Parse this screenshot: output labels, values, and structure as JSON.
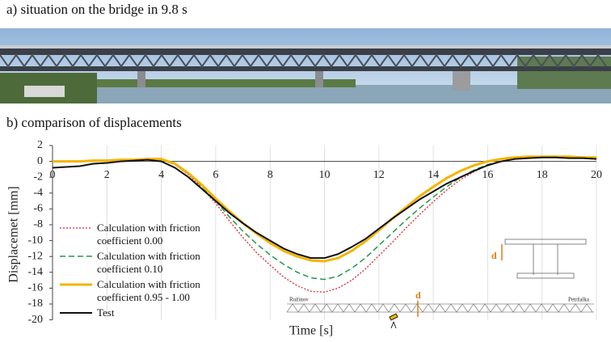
{
  "panel_a_title": "a) situation on the bridge in 9.8 s",
  "panel_b_title": "b) comparison of displacements",
  "chart_data": {
    "type": "line",
    "x_label": "Time [s]",
    "y_label": "Displacemet [mm]",
    "x": [
      0,
      0.5,
      1,
      1.5,
      2,
      2.5,
      3,
      3.5,
      4,
      4.5,
      5,
      5.5,
      6,
      6.5,
      7,
      7.5,
      8,
      8.5,
      9,
      9.5,
      10,
      10.5,
      11,
      11.5,
      12,
      12.5,
      13,
      13.5,
      14,
      14.5,
      15,
      15.5,
      16,
      16.5,
      17,
      17.5,
      18,
      18.5,
      19,
      19.5,
      20
    ],
    "xlim": [
      0,
      20
    ],
    "xticks": [
      0,
      2,
      4,
      6,
      8,
      10,
      12,
      14,
      16,
      18,
      20
    ],
    "ylim": [
      -20,
      2
    ],
    "yticks": [
      2,
      0,
      -2,
      -4,
      -6,
      -8,
      -10,
      -12,
      -14,
      -16,
      -18,
      -20
    ],
    "grid": true,
    "series": [
      {
        "name": "Calculation with friction coefficient 0.00",
        "color": "#e3242b",
        "style": "dotted",
        "values": [
          0,
          0,
          0,
          0.1,
          0.1,
          0.2,
          0.2,
          0.3,
          0.2,
          -0.4,
          -1.7,
          -3.4,
          -5.3,
          -7.5,
          -9.6,
          -11.5,
          -13.1,
          -14.6,
          -15.7,
          -16.4,
          -16.5,
          -16,
          -15,
          -13.6,
          -11.9,
          -10.2,
          -8.4,
          -6.7,
          -5.1,
          -3.6,
          -2.3,
          -1.3,
          -0.5,
          0,
          0.3,
          0.5,
          0.5,
          0.5,
          0.5,
          0.4,
          0.4
        ]
      },
      {
        "name": "Calculation with friction coefficient 0.10",
        "color": "#1f9a4c",
        "style": "dashed",
        "values": [
          0,
          0,
          0,
          0.1,
          0.1,
          0.2,
          0.2,
          0.3,
          0.2,
          -0.4,
          -1.6,
          -3.2,
          -5,
          -7,
          -8.8,
          -10.4,
          -11.8,
          -13,
          -14,
          -14.7,
          -14.9,
          -14.5,
          -13.5,
          -12.2,
          -10.6,
          -9,
          -7.4,
          -5.9,
          -4.5,
          -3.2,
          -2,
          -1.1,
          -0.4,
          0,
          0.3,
          0.5,
          0.5,
          0.5,
          0.5,
          0.4,
          0.4
        ]
      },
      {
        "name": "Calculation with friction coefficient 0.95 - 1.00",
        "color": "#f5b400",
        "style": "thick",
        "values": [
          0,
          0,
          0,
          0.1,
          0.1,
          0.2,
          0.2,
          0.3,
          0.3,
          -0.3,
          -1.5,
          -3,
          -4.7,
          -6.3,
          -7.8,
          -9.1,
          -10.3,
          -11.3,
          -12,
          -12.5,
          -12.6,
          -12.2,
          -11.3,
          -10.1,
          -8.7,
          -7.2,
          -5.8,
          -4.4,
          -3.2,
          -2.1,
          -1.2,
          -0.5,
          0,
          0.3,
          0.5,
          0.6,
          0.6,
          0.6,
          0.6,
          0.5,
          0.5
        ]
      },
      {
        "name": "Test",
        "color": "#111111",
        "style": "solid",
        "values": [
          -0.8,
          -0.7,
          -0.6,
          -0.3,
          -0.2,
          0,
          0.1,
          0.2,
          0,
          -0.8,
          -2,
          -3.5,
          -5,
          -6.5,
          -7.8,
          -9,
          -10,
          -11,
          -11.7,
          -12.2,
          -12.2,
          -11.7,
          -10.8,
          -9.8,
          -8.5,
          -7.2,
          -6,
          -4.8,
          -3.8,
          -2.8,
          -2,
          -1.2,
          -0.5,
          0,
          0.3,
          0.4,
          0.5,
          0.5,
          0.4,
          0.4,
          0.3
        ]
      }
    ],
    "annotations": {
      "left_end": "Ružinov",
      "right_end": "Petržalka",
      "deflection": "d",
      "section_deflection": "d"
    }
  }
}
